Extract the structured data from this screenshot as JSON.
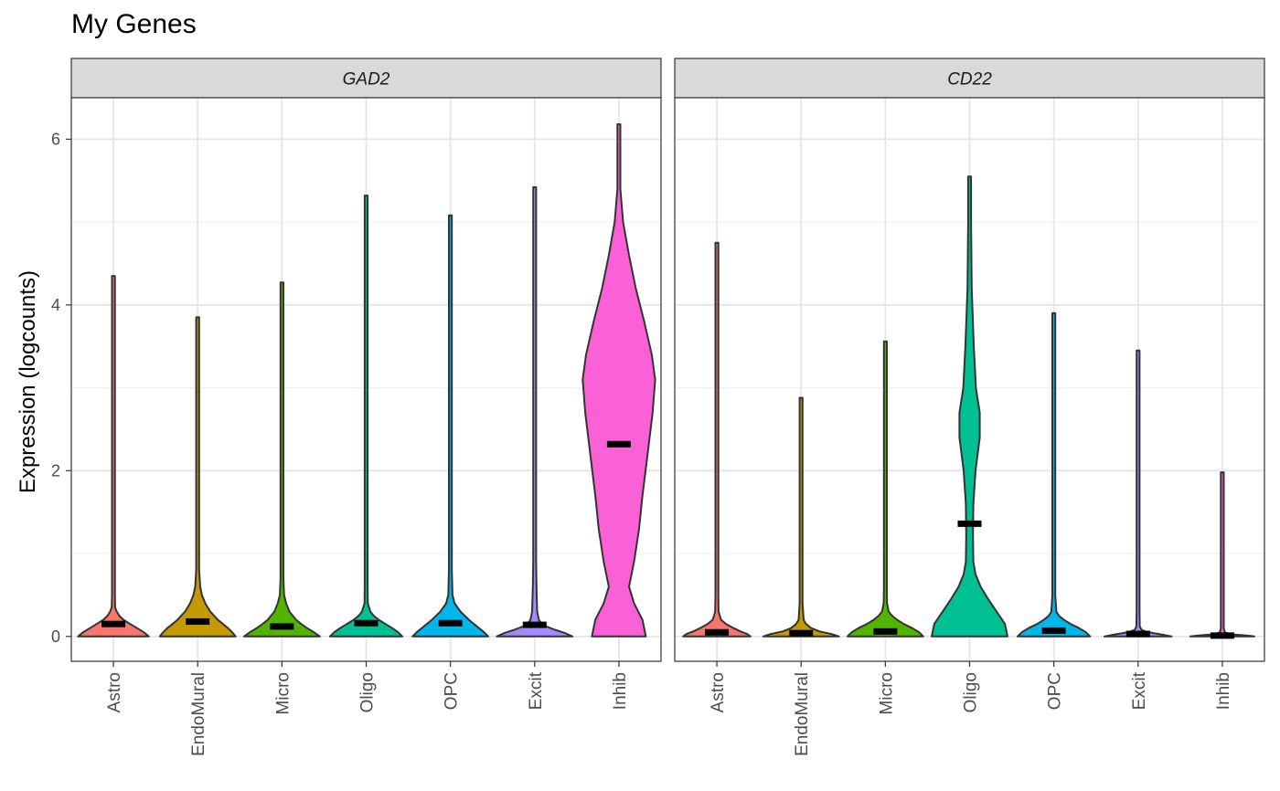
{
  "chart_data": {
    "type": "violin",
    "title": "My Genes",
    "xlabel": "",
    "ylabel": "Expression (logcounts)",
    "ylim": [
      -0.3,
      6.5
    ],
    "yticks": [
      0,
      2,
      4,
      6
    ],
    "grid": true,
    "legend": "none",
    "categories": [
      "Astro",
      "EndoMural",
      "Micro",
      "Oligo",
      "OPC",
      "Excit",
      "Inhib"
    ],
    "colors": [
      "#F8766D",
      "#C49A00",
      "#53B400",
      "#00C094",
      "#00B6EB",
      "#A58AFF",
      "#FB61D7"
    ],
    "panels": [
      {
        "name": "GAD2",
        "violins": [
          {
            "category": "Astro",
            "median": 0.15,
            "max": 4.35,
            "profile": [
              [
                0,
                0.42
              ],
              [
                0.05,
                0.36
              ],
              [
                0.1,
                0.28
              ],
              [
                0.15,
                0.2
              ],
              [
                0.2,
                0.12
              ],
              [
                0.25,
                0.07
              ],
              [
                0.3,
                0.04
              ],
              [
                0.35,
                0.02
              ],
              [
                0.5,
                0.01
              ],
              [
                1.5,
                0.006
              ],
              [
                2.2,
                0.008
              ],
              [
                3.0,
                0.006
              ],
              [
                4.35,
                0.004
              ]
            ]
          },
          {
            "category": "EndoMural",
            "median": 0.18,
            "max": 3.85,
            "profile": [
              [
                0,
                0.45
              ],
              [
                0.05,
                0.41
              ],
              [
                0.1,
                0.36
              ],
              [
                0.15,
                0.3
              ],
              [
                0.2,
                0.24
              ],
              [
                0.3,
                0.15
              ],
              [
                0.4,
                0.09
              ],
              [
                0.5,
                0.05
              ],
              [
                0.6,
                0.03
              ],
              [
                0.8,
                0.015
              ],
              [
                2.0,
                0.008
              ],
              [
                3.85,
                0.004
              ]
            ]
          },
          {
            "category": "Micro",
            "median": 0.12,
            "max": 4.27,
            "profile": [
              [
                0,
                0.45
              ],
              [
                0.05,
                0.38
              ],
              [
                0.1,
                0.3
              ],
              [
                0.15,
                0.23
              ],
              [
                0.2,
                0.17
              ],
              [
                0.3,
                0.09
              ],
              [
                0.4,
                0.05
              ],
              [
                0.5,
                0.025
              ],
              [
                0.7,
                0.012
              ],
              [
                3.0,
                0.008
              ],
              [
                4.27,
                0.004
              ]
            ]
          },
          {
            "category": "Oligo",
            "median": 0.16,
            "max": 5.32,
            "profile": [
              [
                0,
                0.43
              ],
              [
                0.05,
                0.38
              ],
              [
                0.1,
                0.31
              ],
              [
                0.15,
                0.23
              ],
              [
                0.2,
                0.15
              ],
              [
                0.25,
                0.09
              ],
              [
                0.3,
                0.05
              ],
              [
                0.4,
                0.02
              ],
              [
                0.6,
                0.01
              ],
              [
                3.0,
                0.007
              ],
              [
                5.32,
                0.004
              ]
            ]
          },
          {
            "category": "OPC",
            "median": 0.16,
            "max": 5.08,
            "profile": [
              [
                0,
                0.45
              ],
              [
                0.05,
                0.4
              ],
              [
                0.1,
                0.34
              ],
              [
                0.15,
                0.28
              ],
              [
                0.2,
                0.22
              ],
              [
                0.3,
                0.12
              ],
              [
                0.4,
                0.05
              ],
              [
                0.5,
                0.025
              ],
              [
                0.8,
                0.012
              ],
              [
                2.0,
                0.009
              ],
              [
                2.4,
                0.016
              ],
              [
                2.8,
                0.008
              ],
              [
                5.08,
                0.004
              ]
            ]
          },
          {
            "category": "Excit",
            "median": 0.14,
            "max": 5.42,
            "profile": [
              [
                0,
                0.45
              ],
              [
                0.04,
                0.36
              ],
              [
                0.08,
                0.24
              ],
              [
                0.12,
                0.14
              ],
              [
                0.16,
                0.08
              ],
              [
                0.2,
                0.05
              ],
              [
                0.3,
                0.03
              ],
              [
                0.6,
                0.022
              ],
              [
                0.9,
                0.012
              ],
              [
                2.0,
                0.008
              ],
              [
                5.42,
                0.004
              ]
            ]
          },
          {
            "category": "Inhib",
            "median": 2.32,
            "max": 6.18,
            "profile": [
              [
                0,
                0.32
              ],
              [
                0.2,
                0.28
              ],
              [
                0.4,
                0.18
              ],
              [
                0.6,
                0.12
              ],
              [
                0.9,
                0.18
              ],
              [
                1.3,
                0.24
              ],
              [
                1.7,
                0.28
              ],
              [
                2.2,
                0.34
              ],
              [
                2.7,
                0.4
              ],
              [
                3.1,
                0.43
              ],
              [
                3.4,
                0.39
              ],
              [
                3.8,
                0.3
              ],
              [
                4.2,
                0.2
              ],
              [
                4.6,
                0.12
              ],
              [
                5.0,
                0.05
              ],
              [
                5.4,
                0.015
              ],
              [
                6.18,
                0.004
              ]
            ]
          }
        ]
      },
      {
        "name": "CD22",
        "violins": [
          {
            "category": "Astro",
            "median": 0.05,
            "max": 4.75,
            "profile": [
              [
                0,
                0.4
              ],
              [
                0.03,
                0.36
              ],
              [
                0.06,
                0.28
              ],
              [
                0.1,
                0.2
              ],
              [
                0.15,
                0.11
              ],
              [
                0.2,
                0.05
              ],
              [
                0.3,
                0.02
              ],
              [
                0.5,
                0.01
              ],
              [
                4.75,
                0.004
              ]
            ]
          },
          {
            "category": "EndoMural",
            "median": 0.04,
            "max": 2.88,
            "profile": [
              [
                0,
                0.45
              ],
              [
                0.03,
                0.36
              ],
              [
                0.06,
                0.22
              ],
              [
                0.1,
                0.12
              ],
              [
                0.15,
                0.06
              ],
              [
                0.2,
                0.03
              ],
              [
                0.4,
                0.012
              ],
              [
                2.88,
                0.004
              ]
            ]
          },
          {
            "category": "Micro",
            "median": 0.06,
            "max": 3.56,
            "profile": [
              [
                0,
                0.45
              ],
              [
                0.05,
                0.4
              ],
              [
                0.1,
                0.32
              ],
              [
                0.15,
                0.22
              ],
              [
                0.2,
                0.14
              ],
              [
                0.25,
                0.08
              ],
              [
                0.3,
                0.04
              ],
              [
                0.4,
                0.02
              ],
              [
                0.6,
                0.01
              ],
              [
                3.56,
                0.004
              ]
            ]
          },
          {
            "category": "Oligo",
            "median": 1.36,
            "max": 5.55,
            "profile": [
              [
                0,
                0.45
              ],
              [
                0.15,
                0.42
              ],
              [
                0.3,
                0.32
              ],
              [
                0.45,
                0.22
              ],
              [
                0.6,
                0.13
              ],
              [
                0.75,
                0.07
              ],
              [
                0.9,
                0.045
              ],
              [
                1.2,
                0.04
              ],
              [
                1.6,
                0.045
              ],
              [
                2.0,
                0.07
              ],
              [
                2.4,
                0.12
              ],
              [
                2.7,
                0.12
              ],
              [
                3.0,
                0.075
              ],
              [
                3.5,
                0.05
              ],
              [
                4.2,
                0.025
              ],
              [
                5.0,
                0.01
              ],
              [
                5.55,
                0.004
              ]
            ]
          },
          {
            "category": "OPC",
            "median": 0.07,
            "max": 3.9,
            "profile": [
              [
                0,
                0.43
              ],
              [
                0.05,
                0.38
              ],
              [
                0.1,
                0.3
              ],
              [
                0.15,
                0.2
              ],
              [
                0.2,
                0.12
              ],
              [
                0.25,
                0.06
              ],
              [
                0.3,
                0.03
              ],
              [
                0.5,
                0.012
              ],
              [
                3.9,
                0.004
              ]
            ]
          },
          {
            "category": "Excit",
            "median": 0.03,
            "max": 3.45,
            "profile": [
              [
                0,
                0.4
              ],
              [
                0.02,
                0.3
              ],
              [
                0.04,
                0.18
              ],
              [
                0.06,
                0.09
              ],
              [
                0.08,
                0.04
              ],
              [
                0.12,
                0.02
              ],
              [
                0.3,
                0.01
              ],
              [
                3.45,
                0.004
              ]
            ]
          },
          {
            "category": "Inhib",
            "median": 0.01,
            "max": 1.98,
            "profile": [
              [
                0,
                0.38
              ],
              [
                0.01,
                0.3
              ],
              [
                0.02,
                0.18
              ],
              [
                0.03,
                0.08
              ],
              [
                0.05,
                0.03
              ],
              [
                0.1,
                0.012
              ],
              [
                1.98,
                0.004
              ]
            ]
          }
        ]
      }
    ]
  }
}
